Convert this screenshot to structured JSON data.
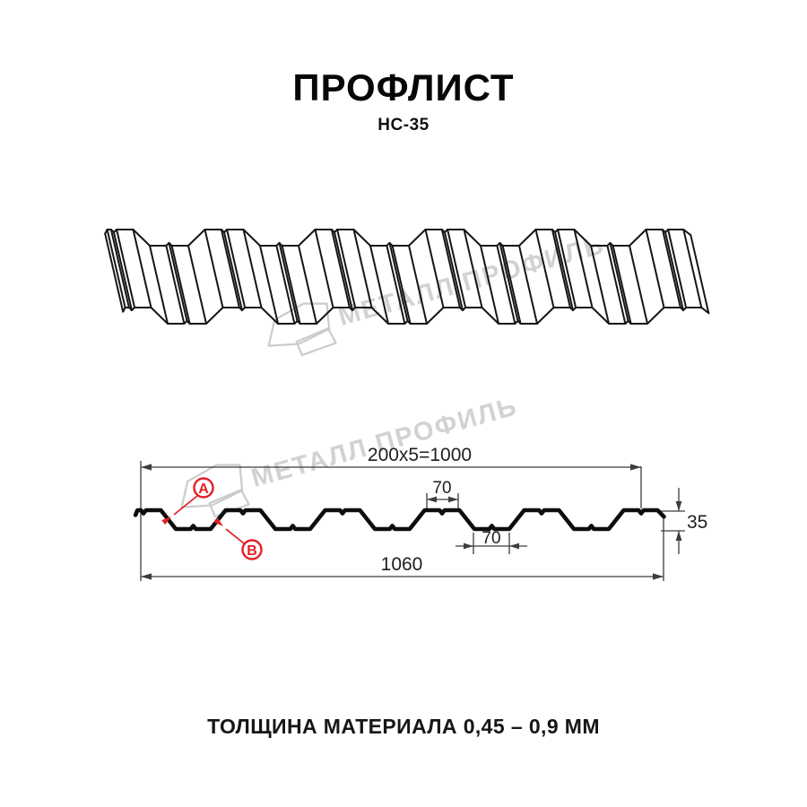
{
  "page": {
    "title": "ПРОФЛИСТ",
    "subtitle": "НС-35",
    "footer": "ТОЛЩИНА МАТЕРИАЛА 0,45 – 0,9 ММ"
  },
  "watermark": {
    "text": "МЕТАЛЛ ПРОФИЛЬ",
    "color": "#d2d2d2"
  },
  "section_dims": {
    "top": "200x5=1000",
    "rib_top": "70",
    "rib_bottom": "70",
    "height": "35",
    "total": "1060",
    "label_a": "A",
    "label_b": "B"
  },
  "colors": {
    "line": "#161616",
    "profile": "#0d0d0d",
    "dim": "#3c3c3c",
    "red": "#e31e24",
    "watermark": "#d2d2d2"
  },
  "profile_spec": {
    "period_mm": 200,
    "modules": 5,
    "crest_flat_mm": 70,
    "trough_flat_mm": 70,
    "slope_run_mm": 30,
    "height_mm": 35,
    "notch_depth_mm": 6,
    "notch_halfwidth_mm": 5,
    "bump_depth_mm": 6,
    "bump_halfwidth_mm": 5
  }
}
